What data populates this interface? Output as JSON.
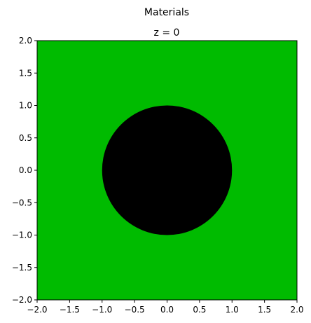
{
  "chart_data": {
    "type": "heatmap",
    "title": "Materials",
    "subtitle": "z = 0",
    "xlabel": "",
    "ylabel": "",
    "xlim": [
      -2.0,
      2.0
    ],
    "ylim": [
      -2.0,
      2.0
    ],
    "grid": false,
    "x_ticks": [
      -2.0,
      -1.5,
      -1.0,
      -0.5,
      0.0,
      0.5,
      1.0,
      1.5,
      2.0
    ],
    "y_ticks": [
      -2.0,
      -1.5,
      -1.0,
      -0.5,
      0.0,
      0.5,
      1.0,
      1.5,
      2.0
    ],
    "x_tick_labels": [
      "−2.0",
      "−1.5",
      "−1.0",
      "−0.5",
      "0.0",
      "0.5",
      "1.0",
      "1.5",
      "2.0"
    ],
    "y_tick_labels": [
      "−2.0",
      "−1.5",
      "−1.0",
      "−0.5",
      "0.0",
      "0.5",
      "1.0",
      "1.5",
      "2.0"
    ],
    "regions": [
      {
        "shape": "square",
        "center": [
          0,
          0
        ],
        "half_width": 2.0,
        "color": "#00bb00"
      },
      {
        "shape": "circle",
        "center": [
          0,
          0
        ],
        "radius": 1.0,
        "color": "#000000"
      }
    ]
  }
}
